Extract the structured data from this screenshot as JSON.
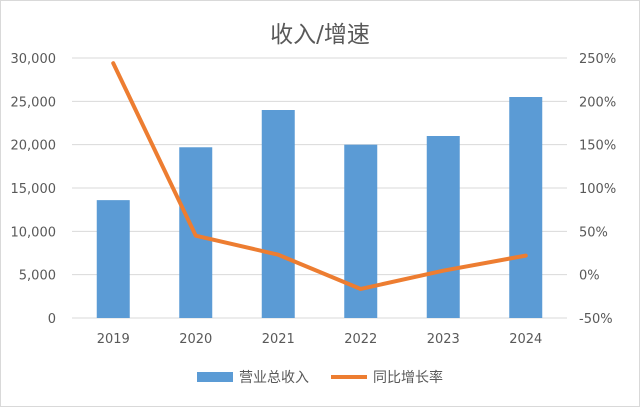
{
  "chart_data": {
    "type": "bar+line",
    "title": "收入/增速",
    "categories": [
      "2019",
      "2020",
      "2021",
      "2022",
      "2023",
      "2024"
    ],
    "series": [
      {
        "name": "营业总收入",
        "type": "bar",
        "axis": "left",
        "color": "#5b9bd5",
        "values": [
          13600,
          19700,
          24000,
          20000,
          21000,
          25500
        ]
      },
      {
        "name": "同比增长率",
        "type": "line",
        "axis": "right",
        "color": "#ed7d31",
        "values": [
          244,
          45,
          23,
          -16.5,
          4.6,
          22
        ]
      }
    ],
    "left_axis": {
      "ylim": [
        0,
        30000
      ],
      "ticks": [
        "0",
        "5,000",
        "10,000",
        "15,000",
        "20,000",
        "25,000",
        "30,000"
      ]
    },
    "right_axis": {
      "ylim": [
        -50,
        250
      ],
      "ticks": [
        "-50%",
        "0%",
        "50%",
        "100%",
        "150%",
        "200%",
        "250%"
      ]
    },
    "grid": true,
    "legend": "bottom"
  }
}
